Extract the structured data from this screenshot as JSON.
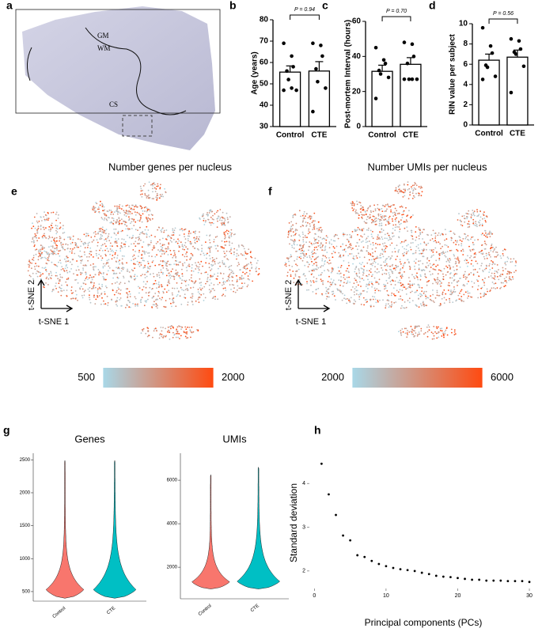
{
  "chart_data": [
    {
      "type": "image",
      "panel": "a",
      "labels": [
        "GM",
        "WM",
        "CS"
      ]
    },
    {
      "type": "bar",
      "panel": "b",
      "ylabel": "Age (years)",
      "categories": [
        "Control",
        "CTE"
      ],
      "values": [
        55.5,
        56
      ],
      "errors": [
        2.9,
        4.4
      ],
      "points": [
        [
          69,
          63,
          58,
          56,
          52,
          47,
          47,
          48
        ],
        [
          69,
          68,
          63,
          57,
          51,
          48,
          37
        ]
      ],
      "ylim": [
        30,
        80
      ],
      "yticks": [
        30,
        40,
        50,
        60,
        70,
        80
      ],
      "annotation": "P = 0.94",
      "color": "#ffffff"
    },
    {
      "type": "bar",
      "panel": "c",
      "ylabel": "Post-mortem Interval (hours)",
      "categories": [
        "Control",
        "CTE"
      ],
      "values": [
        31.5,
        35.5
      ],
      "errors": [
        3.5,
        3.8
      ],
      "points": [
        [
          45,
          38,
          36,
          32,
          30,
          28,
          16
        ],
        [
          48,
          47,
          40,
          36,
          27,
          27,
          27,
          27
        ]
      ],
      "ylim": [
        0,
        60
      ],
      "yticks": [
        0,
        20,
        40,
        60
      ],
      "annotation": "P = 0.70",
      "color": "#ffffff"
    },
    {
      "type": "bar",
      "panel": "d",
      "ylabel": "RIN value per subject",
      "categories": [
        "Control",
        "CTE"
      ],
      "values": [
        6.4,
        6.7
      ],
      "errors": [
        0.6,
        0.7
      ],
      "points": [
        [
          9.6,
          7.8,
          7.1,
          5.9,
          5.7,
          4.8,
          4.5
        ],
        [
          8.5,
          8.3,
          7.5,
          7.2,
          7.0,
          5.8,
          3.2
        ]
      ],
      "ylim": [
        0,
        10
      ],
      "yticks": [
        0,
        2,
        4,
        6,
        8,
        10
      ],
      "annotation": "P = 0.56",
      "color": "#ffffff"
    },
    {
      "type": "tsne",
      "panel": "e",
      "title": "Number genes per nucleus",
      "xlabel": "t-SNE 1",
      "ylabel": "t-SNE 2",
      "colorbar": {
        "lim": [
          500,
          2000
        ],
        "ticks": [
          500,
          2000
        ],
        "colors": [
          "#a8d8e8",
          "#ff4a10"
        ]
      }
    },
    {
      "type": "tsne",
      "panel": "f",
      "title": "Number UMIs per nucleus",
      "xlabel": "t-SNE 1",
      "ylabel": "t-SNE 2",
      "colorbar": {
        "lim": [
          2000,
          6000
        ],
        "ticks": [
          2000,
          6000
        ],
        "colors": [
          "#a8d8e8",
          "#ff4a10"
        ]
      }
    },
    {
      "type": "violin",
      "panel": "g",
      "title": "Genes",
      "categories": [
        "Control",
        "CTE"
      ],
      "colors": [
        "#f8766d",
        "#00bfc4"
      ],
      "min": [
        400,
        400
      ],
      "max": [
        2490,
        2490
      ],
      "ylim": [
        355,
        2600
      ],
      "yticks": [
        500,
        1000,
        1500,
        2000,
        2500
      ]
    },
    {
      "type": "violin",
      "title": "UMIs",
      "categories": [
        "Control",
        "CTE"
      ],
      "colors": [
        "#f8766d",
        "#00bfc4"
      ],
      "min": [
        1000,
        1000
      ],
      "max": [
        6250,
        6600
      ],
      "ylim": [
        550,
        7240
      ],
      "yticks": [
        2000,
        4000,
        6000
      ]
    },
    {
      "type": "scatter",
      "panel": "h",
      "xlabel": "Principal components (PCs)",
      "ylabel": "Standard deviation",
      "color": "#000000",
      "x": [
        1,
        2,
        3,
        4,
        5,
        6,
        7,
        8,
        9,
        10,
        11,
        12,
        13,
        14,
        15,
        16,
        17,
        18,
        19,
        20,
        21,
        22,
        23,
        24,
        25,
        26,
        27,
        28,
        29,
        30
      ],
      "values": [
        4.45,
        3.75,
        3.28,
        2.81,
        2.7,
        2.36,
        2.32,
        2.23,
        2.16,
        2.11,
        2.07,
        2.04,
        2.02,
        2.0,
        1.96,
        1.93,
        1.89,
        1.87,
        1.86,
        1.84,
        1.82,
        1.8,
        1.8,
        1.78,
        1.78,
        1.78,
        1.77,
        1.77,
        1.77,
        1.75
      ],
      "xlim": [
        -0.7,
        31.1
      ],
      "xticks": [
        0,
        10,
        20,
        30
      ],
      "ylim": [
        1.6,
        4.6
      ],
      "yticks": [
        2,
        3,
        4
      ]
    }
  ]
}
